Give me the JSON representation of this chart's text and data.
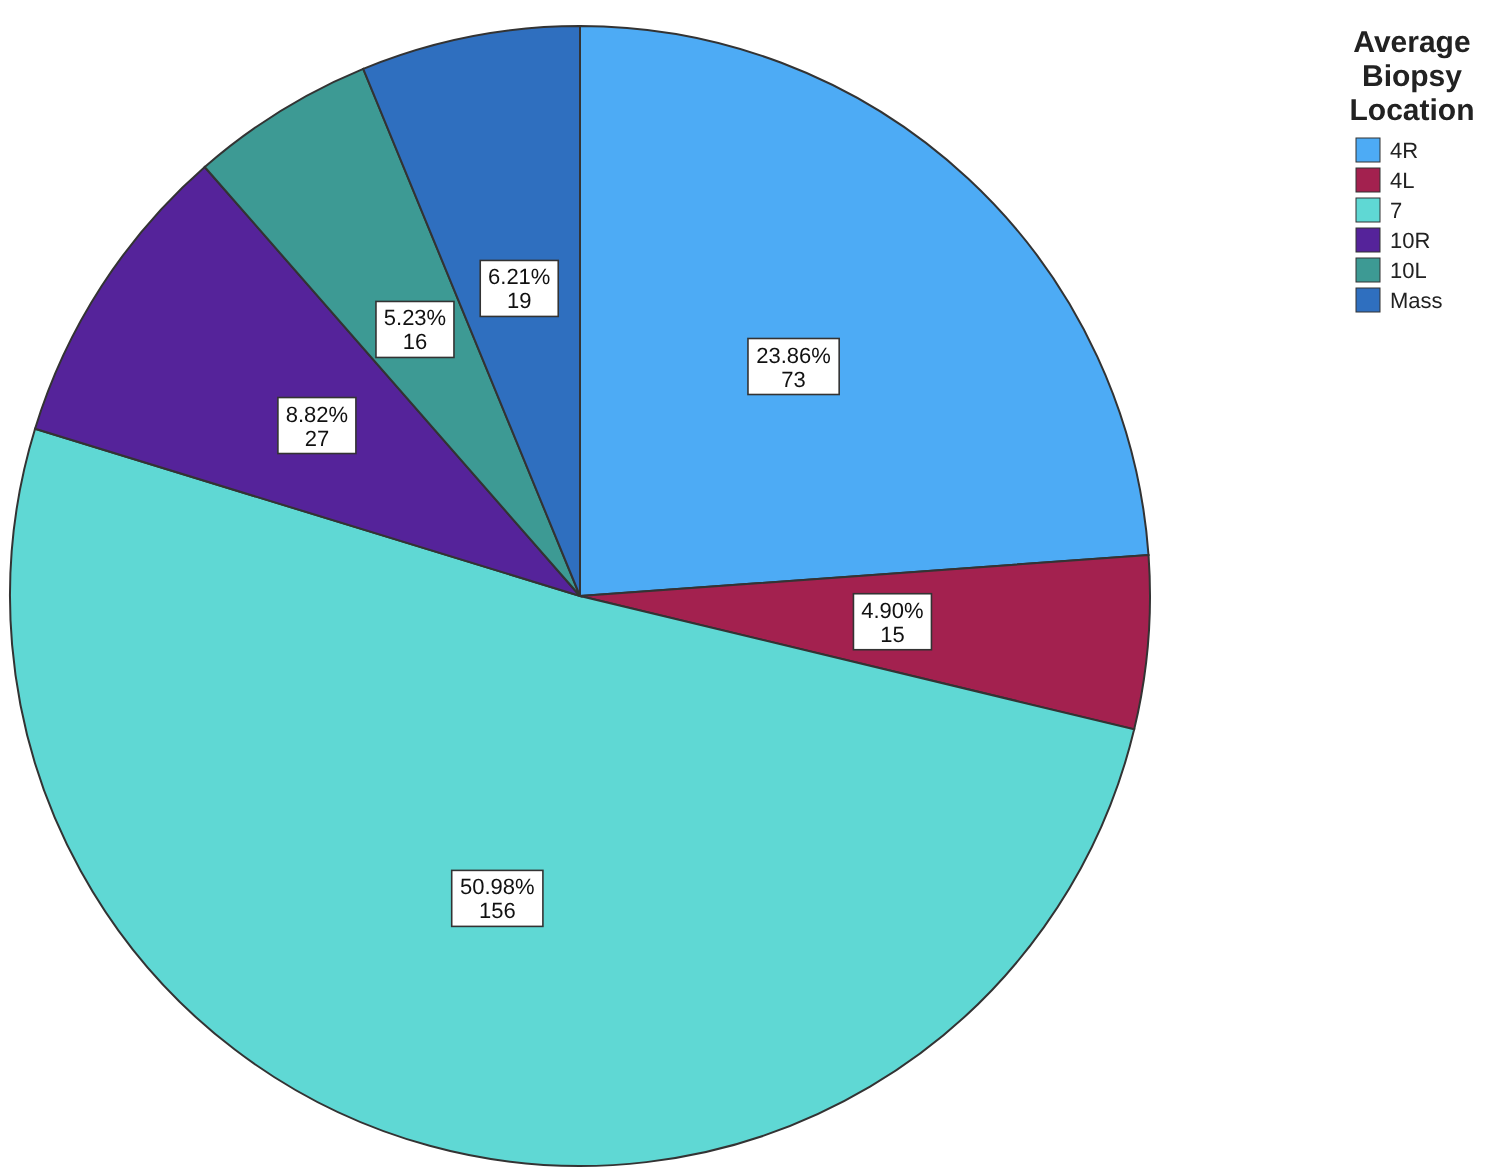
{
  "chart_data": {
    "type": "pie",
    "legend_title": "Average Biopsy Location",
    "legend": "top right",
    "categories": [
      "4R",
      "4L",
      "7",
      "10R",
      "10L",
      "Mass"
    ],
    "values": [
      73,
      15,
      156,
      27,
      16,
      19
    ],
    "colors": [
      "#4dabf5",
      "#a3214f",
      "#5fd8d4",
      "#55239a",
      "#3d9a94",
      "#2f6fbf"
    ],
    "value_labels": [
      "23.86%\n73",
      "4.90%\n15",
      "50.98%\n156",
      "8.82%\n27",
      "5.23%\n16",
      "6.21%\n19"
    ]
  }
}
